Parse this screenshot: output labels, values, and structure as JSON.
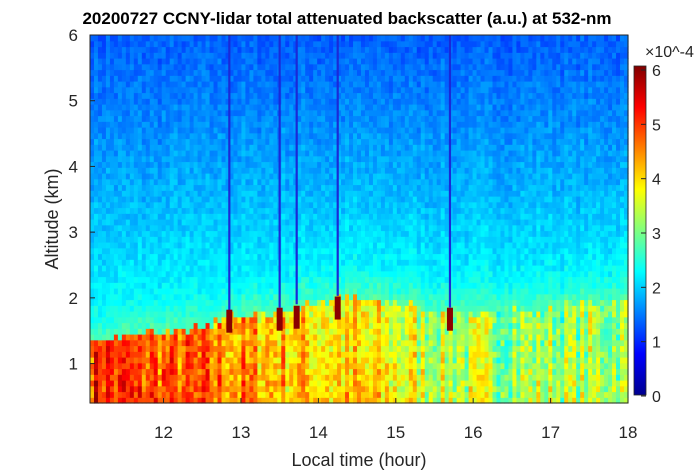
{
  "chart_data": {
    "type": "heatmap",
    "title": "20200727 CCNY-lidar total attenuated backscatter (a.u.) at 532-nm",
    "xlabel": "Local time (hour)",
    "ylabel": "Altitude (km)",
    "xlim": [
      11.05,
      18.0
    ],
    "ylim": [
      0.4,
      6.0
    ],
    "xticks": [
      "12",
      "13",
      "14",
      "15",
      "16",
      "17",
      "18"
    ],
    "yticks": [
      "1",
      "2",
      "3",
      "4",
      "5",
      "6"
    ],
    "colorbar": {
      "colormap": "jet",
      "range": [
        0,
        6
      ],
      "ticks": [
        "0",
        "1",
        "2",
        "3",
        "4",
        "5",
        "6"
      ],
      "exponent": "×10^-4"
    },
    "boundary_layer_top_km": [
      {
        "hour": 11.05,
        "km": 1.32
      },
      {
        "hour": 11.5,
        "km": 1.42
      },
      {
        "hour": 12.0,
        "km": 1.48
      },
      {
        "hour": 12.5,
        "km": 1.58
      },
      {
        "hour": 12.85,
        "km": 1.72
      },
      {
        "hour": 13.5,
        "km": 1.8
      },
      {
        "hour": 14.25,
        "km": 1.98
      },
      {
        "hour": 14.5,
        "km": 2.02
      },
      {
        "hour": 15.0,
        "km": 1.92
      },
      {
        "hour": 15.5,
        "km": 1.82
      },
      {
        "hour": 16.0,
        "km": 1.78
      },
      {
        "hour": 16.5,
        "km": 1.8
      },
      {
        "hour": 17.0,
        "km": 1.86
      },
      {
        "hour": 17.5,
        "km": 1.92
      },
      {
        "hour": 18.0,
        "km": 1.95
      }
    ],
    "backscatter_levels": {
      "free_troposphere_upper": 1.3,
      "free_troposphere_lower": 2.5,
      "boundary_layer_morning": 5.2,
      "boundary_layer_afternoon": 3.4
    },
    "vertical_streaks_hour": [
      12.85,
      13.5,
      13.72,
      14.25,
      15.7
    ],
    "cloud_tops": [
      {
        "hour": 12.85,
        "km": 1.82
      },
      {
        "hour": 13.5,
        "km": 1.85
      },
      {
        "hour": 13.72,
        "km": 1.88
      },
      {
        "hour": 14.25,
        "km": 2.02
      },
      {
        "hour": 15.7,
        "km": 1.85
      }
    ]
  }
}
